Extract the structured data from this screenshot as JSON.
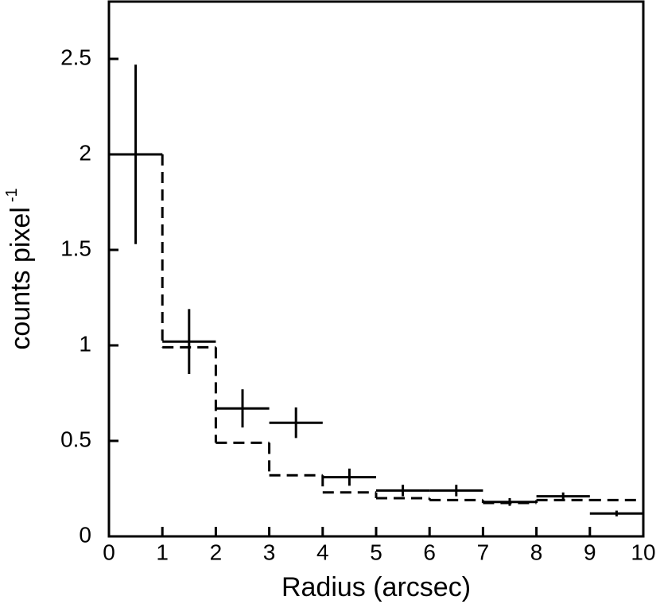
{
  "chart_data": {
    "type": "errorbar-step",
    "xlabel": "Radius (arcsec)",
    "ylabel": "counts pixel",
    "ylabel_superscript": "-1",
    "xlim": [
      0,
      10
    ],
    "ylim": [
      0,
      2.8
    ],
    "xticks": [
      0,
      1,
      2,
      3,
      4,
      5,
      6,
      7,
      8,
      9,
      10
    ],
    "yticks": [
      0,
      0.5,
      1,
      1.5,
      2,
      2.5
    ],
    "series": [
      {
        "color": "#000000",
        "x": [
          0.5,
          1.5,
          2.5,
          3.5,
          4.5,
          5.5,
          6.5,
          7.5,
          8.5,
          9.5
        ],
        "xerr": [
          0.5,
          0.5,
          0.5,
          0.5,
          0.5,
          0.5,
          0.5,
          0.5,
          0.5,
          0.5
        ],
        "values": [
          2.0,
          1.02,
          0.67,
          0.595,
          0.31,
          0.24,
          0.24,
          0.18,
          0.21,
          0.12
        ],
        "yerr": [
          0.47,
          0.17,
          0.1,
          0.08,
          0.045,
          0.03,
          0.03,
          0.02,
          0.02,
          0.015
        ]
      }
    ],
    "model": {
      "color": "#000000",
      "dashed": true,
      "bins": [
        0,
        1,
        2,
        3,
        4,
        5,
        6,
        7,
        8,
        9,
        10
      ],
      "values": [
        2.0,
        0.99,
        0.49,
        0.32,
        0.23,
        0.2,
        0.19,
        0.175,
        0.19,
        0.19
      ]
    }
  }
}
